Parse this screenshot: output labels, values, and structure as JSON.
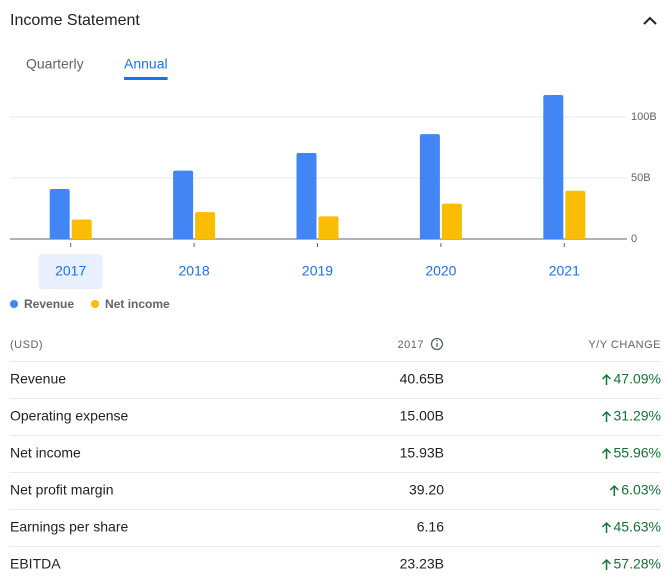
{
  "header": {
    "title": "Income Statement"
  },
  "tabs": [
    "Quarterly",
    "Annual"
  ],
  "chart_data": {
    "type": "bar",
    "categories": [
      "2017",
      "2018",
      "2019",
      "2020",
      "2021"
    ],
    "series": [
      {
        "name": "Revenue",
        "color": "#4285f4",
        "values": [
          41,
          56,
          70.5,
          86,
          118
        ]
      },
      {
        "name": "Net income",
        "color": "#fbbc04",
        "values": [
          16,
          22,
          18.5,
          29,
          39.5
        ]
      }
    ],
    "ylim": [
      0,
      120
    ],
    "yticks": [
      0,
      {
        "value": 50,
        "label": "50B"
      },
      {
        "value": 100,
        "label": "100B"
      }
    ],
    "grid": true
  },
  "table": {
    "columns": [
      "(USD)",
      "2017",
      "Y/Y CHANGE"
    ],
    "rows": [
      [
        "Revenue",
        "40.65B",
        "47.09%"
      ],
      [
        "Operating expense",
        "15.00B",
        "31.29%"
      ],
      [
        "Net income",
        "15.93B",
        "55.96%"
      ],
      [
        "Net profit margin",
        "39.20",
        "6.03%"
      ],
      [
        "Earnings per share",
        "6.16",
        "45.63%"
      ],
      [
        "EBITDA",
        "23.23B",
        "57.28%"
      ]
    ]
  }
}
